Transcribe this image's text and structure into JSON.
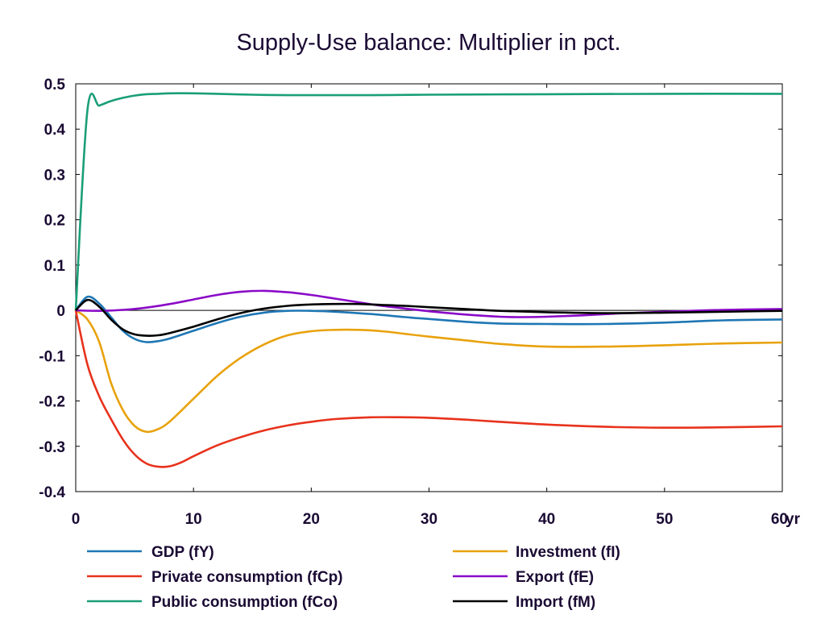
{
  "chart_data": {
    "type": "line",
    "title": "Supply-Use balance: Multiplier in pct.",
    "xlabel": "",
    "ylabel": "",
    "x_unit_label": "yr",
    "xlim": [
      0,
      60
    ],
    "ylim": [
      -0.4,
      0.5
    ],
    "x_ticks": [
      0,
      10,
      20,
      30,
      40,
      50,
      60
    ],
    "x_tick_labels": [
      "0",
      "10",
      "20",
      "30",
      "40",
      "50",
      "60"
    ],
    "y_ticks": [
      0.5,
      0.4,
      0.3,
      0.2,
      0.1,
      0,
      -0.1,
      -0.2,
      -0.3,
      -0.4
    ],
    "y_tick_labels": [
      "0.5",
      "0.4",
      "0.3",
      "0.2",
      "0.1",
      "0",
      "-0.1",
      "-0.2",
      "-0.3",
      "-0.4"
    ],
    "grid": false,
    "zero_line": true,
    "legend_position": "bottom",
    "series": [
      {
        "name": "GDP (fY)",
        "color": "#1f77b4",
        "x": [
          0,
          1,
          2,
          3,
          4,
          5,
          6,
          7,
          8,
          10,
          12,
          14,
          16,
          18,
          20,
          22,
          25,
          28,
          30,
          33,
          36,
          40,
          45,
          50,
          55,
          60
        ],
        "y": [
          0,
          0.03,
          0.015,
          -0.015,
          -0.045,
          -0.063,
          -0.07,
          -0.068,
          -0.062,
          -0.045,
          -0.028,
          -0.014,
          -0.005,
          -0.001,
          -0.001,
          -0.003,
          -0.008,
          -0.015,
          -0.019,
          -0.025,
          -0.029,
          -0.03,
          -0.03,
          -0.027,
          -0.022,
          -0.02
        ]
      },
      {
        "name": "Investment (fI)",
        "color": "#e8a20c",
        "x": [
          0,
          1,
          2,
          3,
          4,
          5,
          6,
          7,
          8,
          10,
          12,
          14,
          16,
          18,
          20,
          22,
          24,
          26,
          28,
          30,
          33,
          36,
          40,
          45,
          50,
          55,
          60
        ],
        "y": [
          0,
          -0.02,
          -0.07,
          -0.16,
          -0.22,
          -0.255,
          -0.268,
          -0.262,
          -0.245,
          -0.195,
          -0.145,
          -0.105,
          -0.075,
          -0.055,
          -0.046,
          -0.043,
          -0.043,
          -0.046,
          -0.052,
          -0.058,
          -0.066,
          -0.074,
          -0.08,
          -0.08,
          -0.077,
          -0.073,
          -0.071
        ]
      },
      {
        "name": "Private consumption (fCp)",
        "color": "#e8321c",
        "x": [
          0,
          1,
          2,
          3,
          4,
          5,
          6,
          7,
          8,
          9,
          10,
          12,
          14,
          16,
          18,
          20,
          22,
          25,
          28,
          30,
          33,
          36,
          40,
          45,
          50,
          55,
          60
        ],
        "y": [
          0,
          -0.12,
          -0.19,
          -0.24,
          -0.285,
          -0.318,
          -0.338,
          -0.345,
          -0.344,
          -0.335,
          -0.322,
          -0.298,
          -0.28,
          -0.265,
          -0.254,
          -0.246,
          -0.24,
          -0.236,
          -0.236,
          -0.237,
          -0.241,
          -0.246,
          -0.252,
          -0.257,
          -0.259,
          -0.258,
          -0.256
        ]
      },
      {
        "name": "Export (fE)",
        "color": "#8a0ac8",
        "x": [
          0,
          2,
          4,
          6,
          8,
          10,
          12,
          14,
          16,
          18,
          20,
          22,
          24,
          26,
          28,
          30,
          33,
          36,
          38,
          40,
          43,
          46,
          50,
          55,
          60
        ],
        "y": [
          0,
          -0.001,
          0.001,
          0.006,
          0.014,
          0.024,
          0.034,
          0.041,
          0.043,
          0.04,
          0.034,
          0.026,
          0.018,
          0.01,
          0.004,
          -0.002,
          -0.009,
          -0.014,
          -0.015,
          -0.014,
          -0.011,
          -0.007,
          -0.003,
          0.001,
          0.003
        ]
      },
      {
        "name": "Public consumption (fCo)",
        "color": "#1a9e78",
        "x": [
          0,
          1,
          2,
          3,
          4,
          5,
          6,
          7,
          8,
          10,
          12,
          15,
          18,
          20,
          25,
          30,
          40,
          50,
          60
        ],
        "y": [
          0,
          0.443,
          0.452,
          0.462,
          0.469,
          0.474,
          0.477,
          0.478,
          0.479,
          0.479,
          0.478,
          0.476,
          0.475,
          0.475,
          0.475,
          0.476,
          0.477,
          0.478,
          0.478
        ]
      },
      {
        "name": "Import (fM)",
        "color": "#000000",
        "x": [
          0,
          1,
          2,
          3,
          4,
          5,
          6,
          7,
          8,
          10,
          12,
          14,
          16,
          18,
          20,
          22,
          24,
          26,
          28,
          30,
          33,
          36,
          40,
          45,
          50,
          55,
          60
        ],
        "y": [
          0,
          0.023,
          0.008,
          -0.02,
          -0.042,
          -0.053,
          -0.056,
          -0.055,
          -0.05,
          -0.036,
          -0.02,
          -0.006,
          0.004,
          0.01,
          0.013,
          0.014,
          0.014,
          0.012,
          0.01,
          0.007,
          0.003,
          -0.001,
          -0.004,
          -0.006,
          -0.005,
          -0.003,
          -0.001
        ]
      }
    ]
  }
}
